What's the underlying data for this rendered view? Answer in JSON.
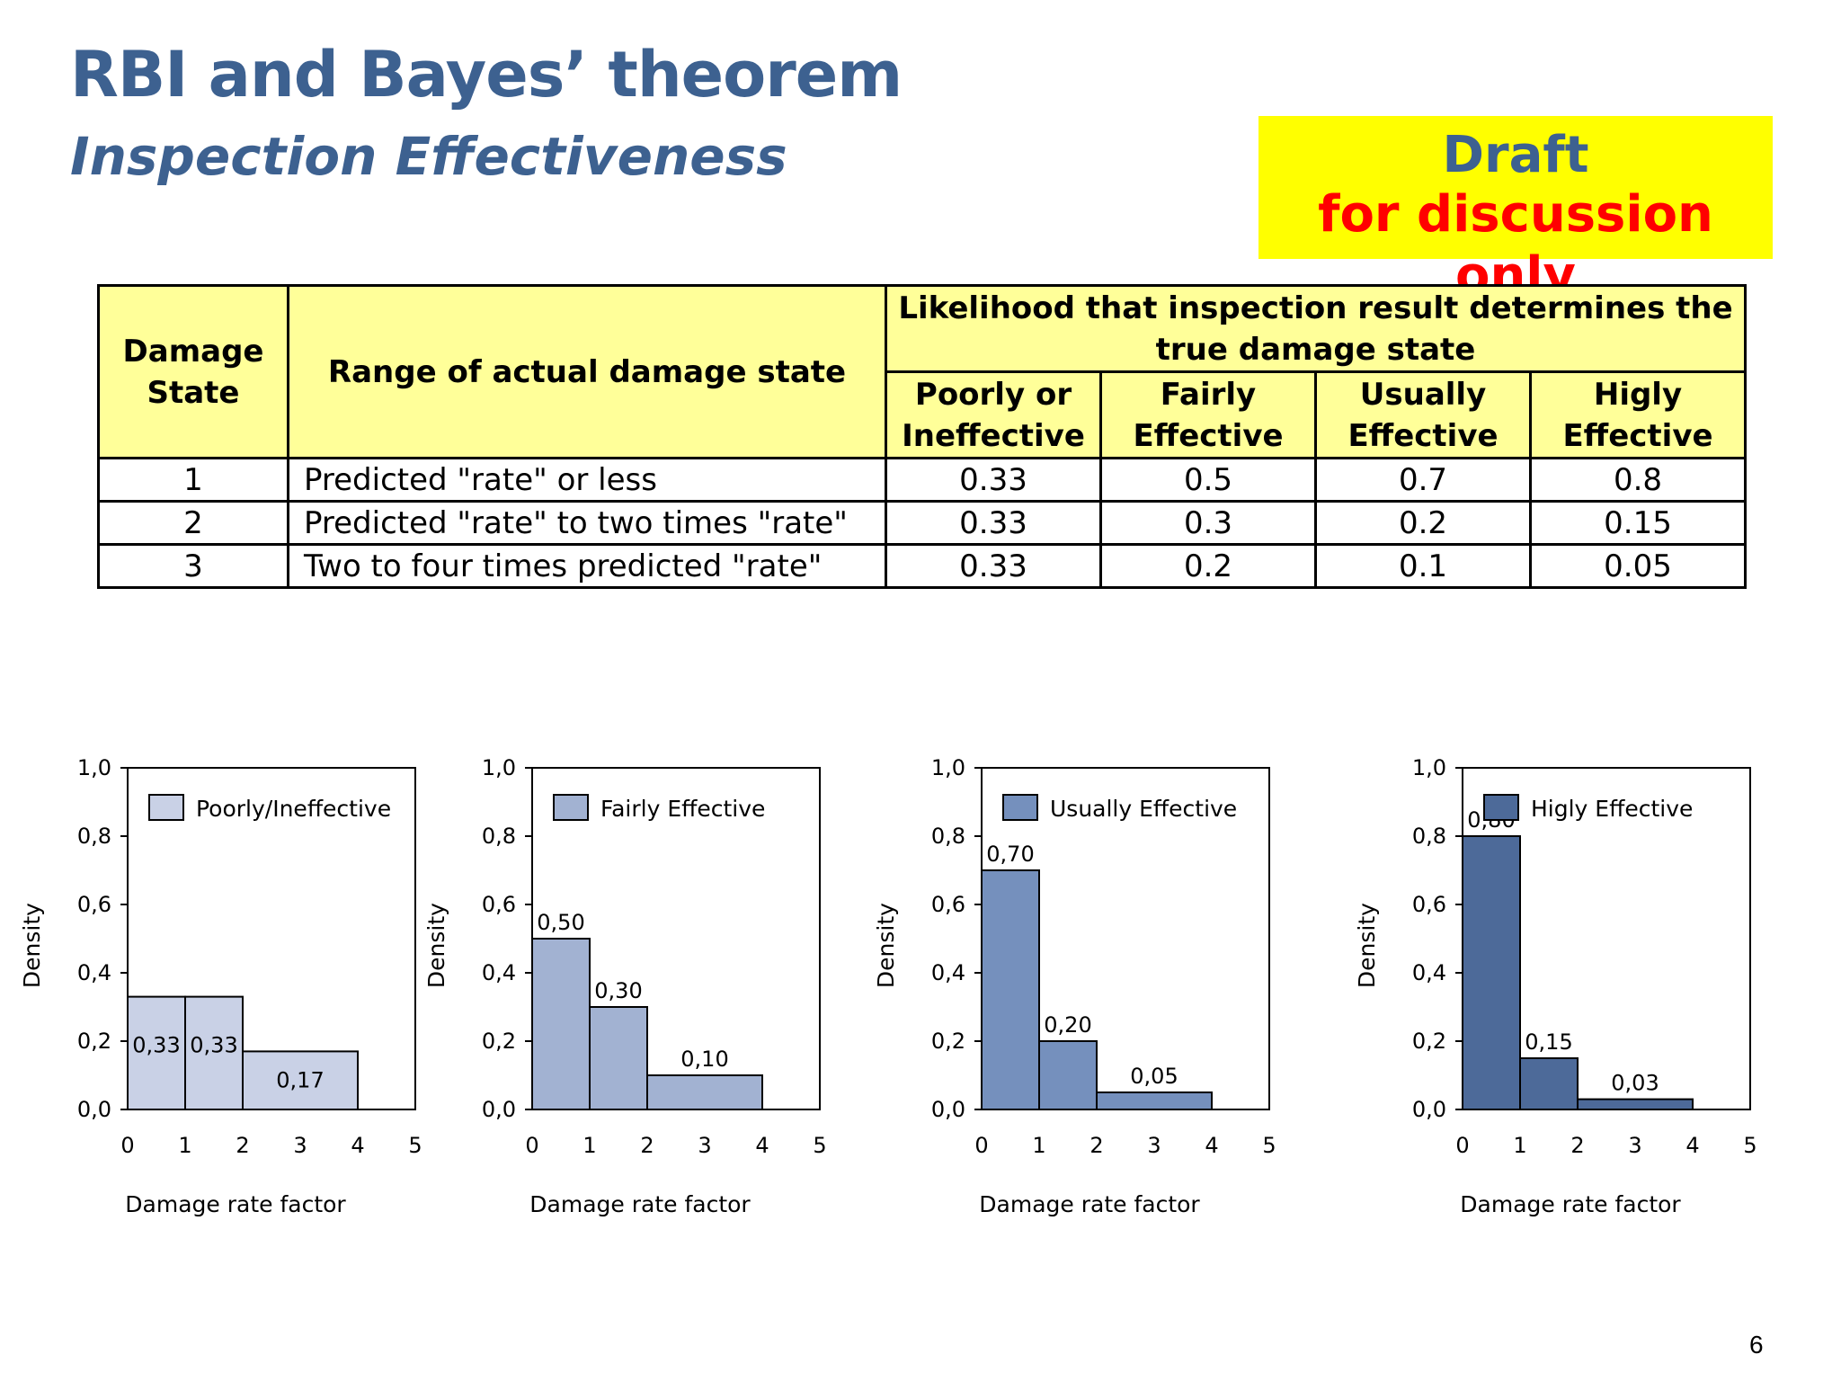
{
  "slide": {
    "title": "RBI and Bayes’ theorem",
    "subtitle": "Inspection Effectiveness",
    "draft_line1": "Draft",
    "draft_line2": "for discussion only",
    "page_number": "6"
  },
  "table": {
    "col_damage_state": "Damage State",
    "col_range": "Range of actual damage state",
    "col_group": "Likelihood that inspection result determines the true damage state",
    "cols": [
      "Poorly or Ineffective",
      "Fairly Effective",
      "Usually Effective",
      "Higly Effective"
    ],
    "rows": [
      {
        "state": "1",
        "range": "Predicted \"rate\" or less",
        "values": [
          "0.33",
          "0.5",
          "0.7",
          "0.8"
        ]
      },
      {
        "state": "2",
        "range": "Predicted \"rate\" to two times \"rate\"",
        "values": [
          "0.33",
          "0.3",
          "0.2",
          "0.15"
        ]
      },
      {
        "state": "3",
        "range": "Two to four times predicted \"rate\"",
        "values": [
          "0.33",
          "0.2",
          "0.1",
          "0.05"
        ]
      }
    ]
  },
  "chart_data": [
    {
      "type": "bar",
      "series": [
        {
          "name": "Poorly/Ineffective",
          "color": "#c9d1e6",
          "bins": [
            {
              "x0": 0,
              "x1": 1,
              "value": 0.33,
              "label": "0,33"
            },
            {
              "x0": 1,
              "x1": 2,
              "value": 0.33,
              "label": "0,33"
            },
            {
              "x0": 2,
              "x1": 4,
              "value": 0.17,
              "label": "0,17"
            }
          ]
        }
      ],
      "xlabel": "Damage rate factor",
      "ylabel": "Density",
      "xlim": [
        0,
        5
      ],
      "ylim": [
        0,
        1
      ],
      "xticks": [
        "0",
        "1",
        "2",
        "3",
        "4",
        "5"
      ],
      "yticks": [
        "0,0",
        "0,2",
        "0,4",
        "0,6",
        "0,8",
        "1,0"
      ],
      "legend": "top-right",
      "grid": false
    },
    {
      "type": "bar",
      "series": [
        {
          "name": "Fairly Effective",
          "color": "#a2b2d2",
          "bins": [
            {
              "x0": 0,
              "x1": 1,
              "value": 0.5,
              "label": "0,50"
            },
            {
              "x0": 1,
              "x1": 2,
              "value": 0.3,
              "label": "0,30"
            },
            {
              "x0": 2,
              "x1": 4,
              "value": 0.1,
              "label": "0,10"
            }
          ]
        }
      ],
      "xlabel": "Damage rate factor",
      "ylabel": "Density",
      "xlim": [
        0,
        5
      ],
      "ylim": [
        0,
        1
      ],
      "xticks": [
        "0",
        "1",
        "2",
        "3",
        "4",
        "5"
      ],
      "yticks": [
        "0,0",
        "0,2",
        "0,4",
        "0,6",
        "0,8",
        "1,0"
      ],
      "legend": "top-right",
      "grid": false
    },
    {
      "type": "bar",
      "series": [
        {
          "name": "Usually Effective",
          "color": "#7590bd",
          "bins": [
            {
              "x0": 0,
              "x1": 1,
              "value": 0.7,
              "label": "0,70"
            },
            {
              "x0": 1,
              "x1": 2,
              "value": 0.2,
              "label": "0,20"
            },
            {
              "x0": 2,
              "x1": 4,
              "value": 0.05,
              "label": "0,05"
            }
          ]
        }
      ],
      "xlabel": "Damage rate factor",
      "ylabel": "Density",
      "xlim": [
        0,
        5
      ],
      "ylim": [
        0,
        1
      ],
      "xticks": [
        "0",
        "1",
        "2",
        "3",
        "4",
        "5"
      ],
      "yticks": [
        "0,0",
        "0,2",
        "0,4",
        "0,6",
        "0,8",
        "1,0"
      ],
      "legend": "top-right",
      "grid": false
    },
    {
      "type": "bar",
      "series": [
        {
          "name": "Higly Effective",
          "color": "#4d6a99",
          "bins": [
            {
              "x0": 0,
              "x1": 1,
              "value": 0.8,
              "label": "0,80"
            },
            {
              "x0": 1,
              "x1": 2,
              "value": 0.15,
              "label": "0,15"
            },
            {
              "x0": 2,
              "x1": 4,
              "value": 0.03,
              "label": "0,03"
            }
          ]
        }
      ],
      "xlabel": "Damage rate factor",
      "ylabel": "Density",
      "xlim": [
        0,
        5
      ],
      "ylim": [
        0,
        1
      ],
      "xticks": [
        "0",
        "1",
        "2",
        "3",
        "4",
        "5"
      ],
      "yticks": [
        "0,0",
        "0,2",
        "0,4",
        "0,6",
        "0,8",
        "1,0"
      ],
      "legend": "top-right",
      "grid": false
    }
  ]
}
